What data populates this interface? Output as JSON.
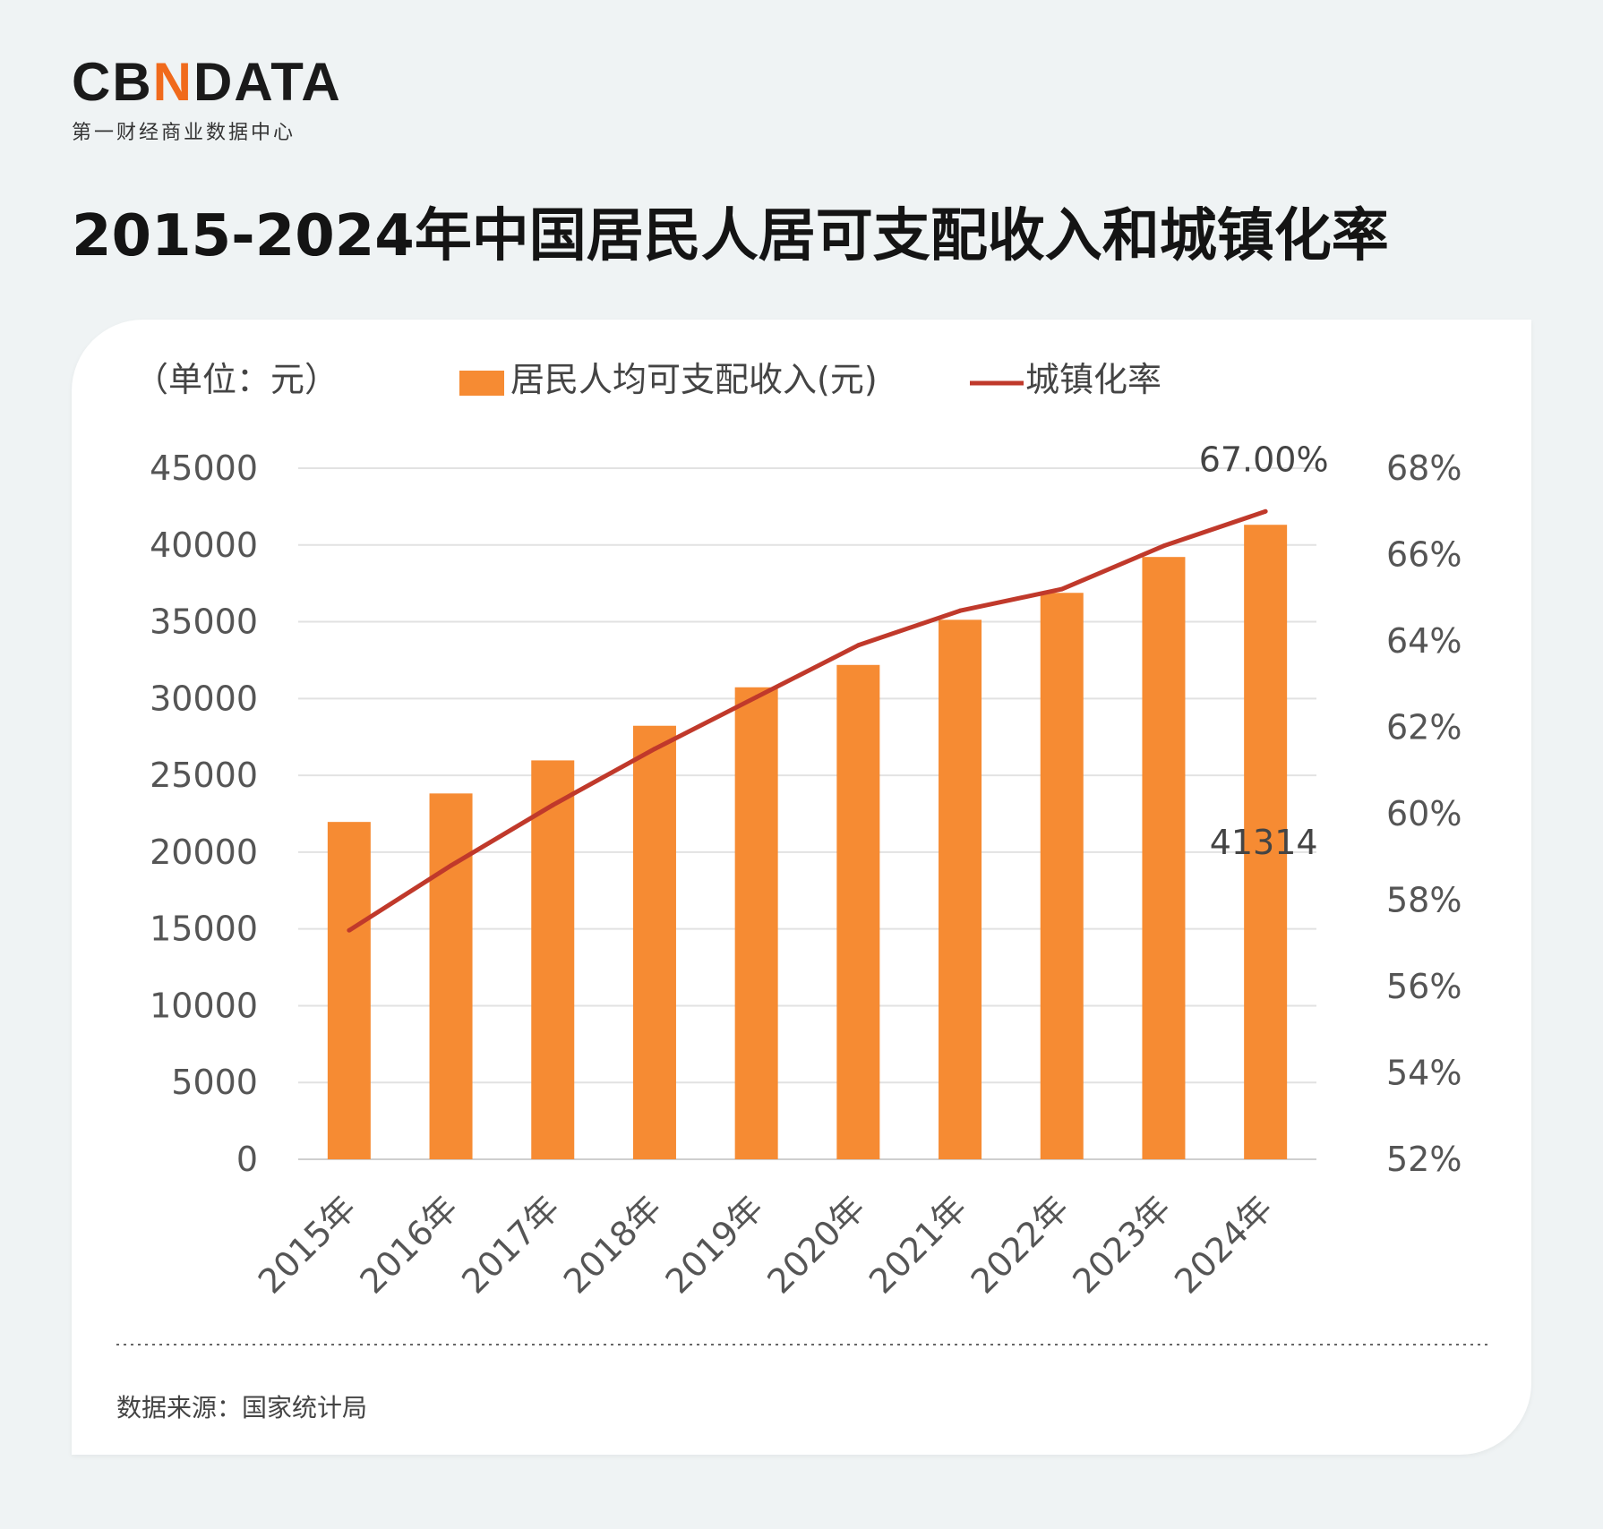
{
  "logo": {
    "part1": "CB",
    "part2": "N",
    "part3": "DATA",
    "subtitle": "第一财经商业数据中心",
    "brand_color": "#f06a1c"
  },
  "page_title": "2015-2024年中国居民人居可支配收入和城镇化率",
  "source_note": "数据来源：国家统计局",
  "chart_data": {
    "type": "bar",
    "title": "2015-2024年中国居民人居可支配收入和城镇化率",
    "unit_label": "（单位：元）",
    "categories": [
      "2015年",
      "2016年",
      "2017年",
      "2018年",
      "2019年",
      "2020年",
      "2021年",
      "2022年",
      "2023年",
      "2024年"
    ],
    "series": [
      {
        "name": "居民人均可支配收入(元)",
        "type": "bar",
        "axis": "left",
        "color": "#f68b33",
        "values": [
          21966,
          23821,
          25974,
          28228,
          30733,
          32189,
          35128,
          36883,
          39218,
          41314
        ]
      },
      {
        "name": "城镇化率",
        "type": "line",
        "axis": "right",
        "color": "#c0392b",
        "values": [
          57.3,
          58.8,
          60.2,
          61.5,
          62.7,
          63.9,
          64.7,
          65.2,
          66.2,
          67.0
        ]
      }
    ],
    "left_axis": {
      "ylim": [
        0,
        45000
      ],
      "ticks": [
        "0",
        "5000",
        "10000",
        "15000",
        "20000",
        "25000",
        "30000",
        "35000",
        "40000",
        "45000"
      ]
    },
    "right_axis": {
      "ylim": [
        52,
        68
      ],
      "ticks": [
        "52%",
        "54%",
        "56%",
        "58%",
        "60%",
        "62%",
        "64%",
        "66%",
        "68%"
      ]
    },
    "annotations": [
      {
        "text": "67.00%",
        "series": "城镇化率",
        "category": "2024年"
      },
      {
        "text": "41314",
        "series": "居民人均可支配收入(元)",
        "category": "2024年"
      }
    ],
    "grid": true,
    "legend_position": "top",
    "watermark": "CBNDATA 第一财经商业数据中心"
  }
}
